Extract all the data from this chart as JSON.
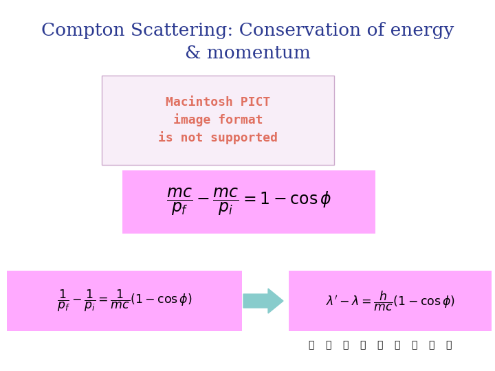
{
  "title": "Compton Scattering: Conservation of energy\n& momentum",
  "title_color": "#2b3990",
  "title_fontsize": 19,
  "bg_color": "#ffffff",
  "pink_bg": "#ffaaff",
  "pict_box_facecolor": "#f8eef8",
  "pict_border_color": "#ccaacc",
  "pict_text_color": "#e07060",
  "arrow_color": "#88cccc",
  "thumbs_count": 9,
  "formula1": "$\\dfrac{mc}{p_f} - \\dfrac{mc}{p_i} = 1 - \\cos\\phi$",
  "formula2_left": "$\\dfrac{1}{p_f} - \\dfrac{1}{p_i} = \\dfrac{1}{mc}(1-\\cos\\phi)$",
  "formula2_right": "$\\lambda' - \\lambda = \\dfrac{h}{mc}(1-\\cos\\phi)$",
  "pict_text_line1": "Macintosh PICT",
  "pict_text_line2": "image format",
  "pict_text_line3": "is not supported"
}
